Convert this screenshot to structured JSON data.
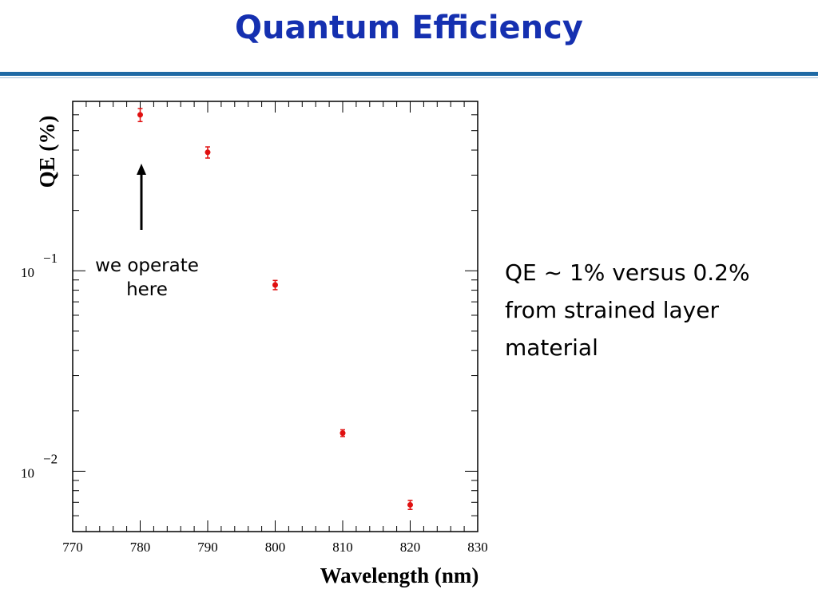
{
  "slide": {
    "title": "Quantum Efficiency",
    "note": "QE ~ 1% versus 0.2% from strained layer material",
    "annotation": "we operate here"
  },
  "colors": {
    "title": "#1530b0",
    "rule": "#1f6aa5",
    "marker": "#e01010"
  },
  "chart_data": {
    "type": "scatter",
    "xlabel": "Wavelength (nm)",
    "ylabel": "QE (%)",
    "xlim": [
      770,
      830
    ],
    "ylim": [
      0.005,
      0.7
    ],
    "yscale": "log",
    "grid": false,
    "x_ticks": [
      770,
      780,
      790,
      800,
      810,
      820,
      830
    ],
    "y_ticks": [
      {
        "value": 0.1,
        "base": "10",
        "exp": "−1"
      },
      {
        "value": 0.01,
        "base": "10",
        "exp": "−2"
      }
    ],
    "series": [
      {
        "x": [
          780,
          790,
          800,
          810,
          820
        ],
        "y": [
          0.6,
          0.39,
          0.085,
          0.0155,
          0.0068
        ],
        "err": [
          0.045,
          0.025,
          0.0045,
          0.0006,
          0.00035
        ]
      }
    ]
  }
}
